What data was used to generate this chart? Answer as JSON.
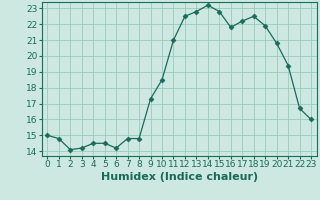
{
  "x": [
    0,
    1,
    2,
    3,
    4,
    5,
    6,
    7,
    8,
    9,
    10,
    11,
    12,
    13,
    14,
    15,
    16,
    17,
    18,
    19,
    20,
    21,
    22,
    23
  ],
  "y": [
    15.0,
    14.8,
    14.1,
    14.2,
    14.5,
    14.5,
    14.2,
    14.8,
    14.8,
    17.3,
    18.5,
    21.0,
    22.5,
    22.8,
    23.2,
    22.8,
    21.8,
    22.2,
    22.5,
    21.9,
    20.8,
    19.4,
    16.7,
    16.0
  ],
  "line_color": "#1a6b5a",
  "marker": "D",
  "marker_size": 2.5,
  "bg_color": "#cce8e0",
  "grid_color": "#99ccbb",
  "xlabel": "Humidex (Indice chaleur)",
  "xlabel_fontsize": 8,
  "tick_fontsize": 6.5,
  "ylim": [
    13.7,
    23.4
  ],
  "xlim": [
    -0.5,
    23.5
  ],
  "yticks": [
    14,
    15,
    16,
    17,
    18,
    19,
    20,
    21,
    22,
    23
  ],
  "xticks": [
    0,
    1,
    2,
    3,
    4,
    5,
    6,
    7,
    8,
    9,
    10,
    11,
    12,
    13,
    14,
    15,
    16,
    17,
    18,
    19,
    20,
    21,
    22,
    23
  ]
}
